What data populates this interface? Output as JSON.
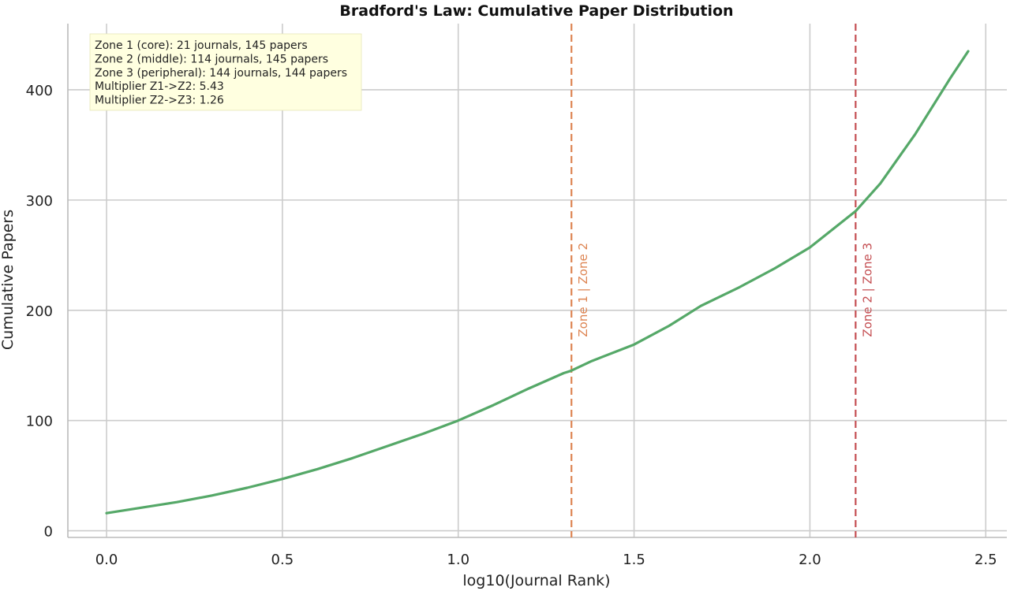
{
  "chart_data": {
    "type": "line",
    "title": "Bradford's Law: Cumulative Paper Distribution",
    "xlabel": "log10(Journal Rank)",
    "ylabel": "Cumulative Papers",
    "xlim": [
      -0.11,
      2.56
    ],
    "ylim": [
      -6,
      460
    ],
    "xticks": [
      0.0,
      0.5,
      1.0,
      1.5,
      2.0,
      2.5
    ],
    "xtick_labels": [
      "0.0",
      "0.5",
      "1.0",
      "1.5",
      "2.0",
      "2.5"
    ],
    "yticks": [
      0,
      100,
      200,
      300,
      400
    ],
    "ytick_labels": [
      "0",
      "100",
      "200",
      "300",
      "400"
    ],
    "grid": true,
    "series": [
      {
        "color": "#55a868",
        "x": [
          0.0,
          0.1,
          0.2,
          0.3,
          0.4,
          0.5,
          0.6,
          0.7,
          0.8,
          0.9,
          1.0,
          1.1,
          1.2,
          1.3,
          1.32,
          1.38,
          1.5,
          1.6,
          1.69,
          1.8,
          1.9,
          2.0,
          2.13,
          2.2,
          2.3,
          2.4,
          2.45
        ],
        "y": [
          16,
          21,
          26,
          32,
          39,
          47,
          56,
          66,
          77,
          88,
          100,
          114,
          129,
          143,
          145,
          154,
          169,
          186,
          204,
          221,
          238,
          257,
          290,
          315,
          360,
          411,
          435
        ]
      }
    ],
    "vlines": [
      {
        "x": 1.322,
        "label": "Zone 1 | Zone 2",
        "color": "#dd8452"
      },
      {
        "x": 2.13,
        "label": "Zone 2 | Zone 3",
        "color": "#c44e52"
      }
    ],
    "annotation": {
      "placement": "top-left",
      "lines": [
        "Zone 1 (core): 21 journals, 145 papers",
        "Zone 2 (middle): 114 journals, 145 papers",
        "Zone 3 (peripheral): 144 journals, 144 papers",
        "Multiplier Z1->Z2: 5.43",
        "Multiplier Z2->Z3: 1.26"
      ]
    }
  }
}
